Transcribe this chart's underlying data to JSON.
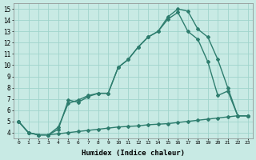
{
  "title": "",
  "xlabel": "Humidex (Indice chaleur)",
  "ylabel": "",
  "bg_color": "#c8eae4",
  "line_color": "#2e7d6e",
  "grid_color": "#a0d4cc",
  "xlim": [
    -0.5,
    23.5
  ],
  "ylim": [
    3.5,
    15.5
  ],
  "xticks": [
    0,
    1,
    2,
    3,
    4,
    5,
    6,
    7,
    8,
    9,
    10,
    11,
    12,
    13,
    14,
    15,
    16,
    17,
    18,
    19,
    20,
    21,
    22,
    23
  ],
  "yticks": [
    4,
    5,
    6,
    7,
    8,
    9,
    10,
    11,
    12,
    13,
    14,
    15
  ],
  "line1_x": [
    0,
    1,
    2,
    3,
    4,
    5,
    6,
    7,
    8,
    9,
    10,
    11,
    12,
    13,
    14,
    15,
    16,
    17,
    18,
    19,
    20,
    21,
    22,
    23
  ],
  "line1_y": [
    5.0,
    4.0,
    3.8,
    3.8,
    3.9,
    4.0,
    4.1,
    4.2,
    4.3,
    4.4,
    4.5,
    4.55,
    4.6,
    4.7,
    4.75,
    4.8,
    4.9,
    5.0,
    5.1,
    5.2,
    5.3,
    5.4,
    5.5,
    5.5
  ],
  "line2_x": [
    0,
    1,
    2,
    3,
    4,
    5,
    6,
    7,
    8,
    9,
    10,
    11,
    12,
    13,
    14,
    15,
    16,
    17,
    18,
    19,
    20,
    21,
    22,
    23
  ],
  "line2_y": [
    5.0,
    4.0,
    3.8,
    3.8,
    4.5,
    6.6,
    6.9,
    7.3,
    7.5,
    7.5,
    9.8,
    10.5,
    11.6,
    12.5,
    13.0,
    14.3,
    15.0,
    14.8,
    13.2,
    12.5,
    10.5,
    8.0,
    5.5,
    5.5
  ],
  "line3_x": [
    0,
    1,
    2,
    3,
    4,
    5,
    6,
    7,
    8,
    9,
    10,
    11,
    12,
    13,
    14,
    15,
    16,
    17,
    18,
    19,
    20,
    21,
    22,
    23
  ],
  "line3_y": [
    5.0,
    4.0,
    3.8,
    3.8,
    4.3,
    6.9,
    6.7,
    7.2,
    7.5,
    7.5,
    9.8,
    10.5,
    11.6,
    12.5,
    13.0,
    14.1,
    14.7,
    13.0,
    12.3,
    10.3,
    7.3,
    7.7,
    5.5,
    5.5
  ]
}
